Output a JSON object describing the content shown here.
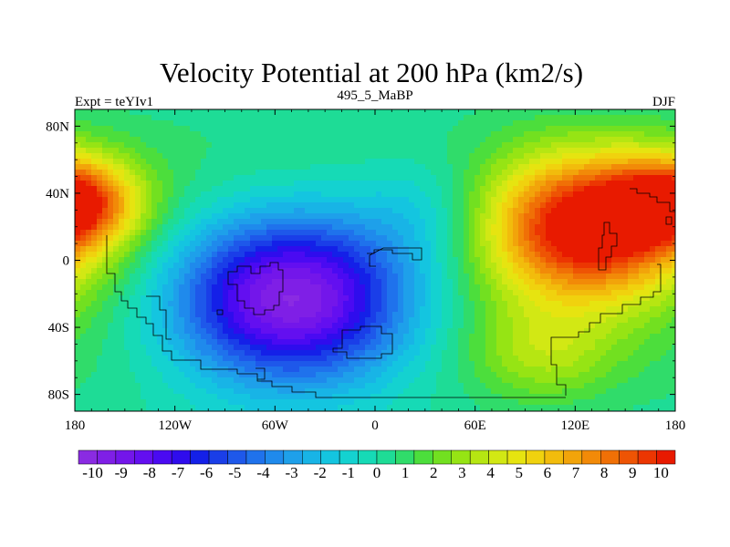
{
  "chart_data": {
    "type": "heatmap",
    "title": "Velocity Potential at 200 hPa (km2/s)",
    "left_label": "Expt = teYIv1",
    "center_label": "495_5_MaBP",
    "right_label": "DJF",
    "x_range": [
      -180,
      180
    ],
    "y_range": [
      -90,
      90
    ],
    "x_ticks": [
      {
        "value": -180,
        "label": "180"
      },
      {
        "value": -120,
        "label": "120W"
      },
      {
        "value": -60,
        "label": "60W"
      },
      {
        "value": 0,
        "label": "0"
      },
      {
        "value": 60,
        "label": "60E"
      },
      {
        "value": 120,
        "label": "120E"
      },
      {
        "value": 180,
        "label": "180"
      }
    ],
    "y_ticks": [
      {
        "value": 80,
        "label": "80N"
      },
      {
        "value": 40,
        "label": "40N"
      },
      {
        "value": 0,
        "label": "0"
      },
      {
        "value": -40,
        "label": "40S"
      },
      {
        "value": -80,
        "label": "80S"
      }
    ],
    "colorbar": {
      "min": -10.5,
      "max": 10.5,
      "step": 0.5,
      "labels": [
        "-10",
        "-9",
        "-8",
        "-7",
        "-6",
        "-5",
        "-4",
        "-3",
        "-2",
        "-1",
        "0",
        "1",
        "2",
        "3",
        "4",
        "5",
        "6",
        "7",
        "8",
        "9",
        "10"
      ],
      "colors": [
        "#8a2be2",
        "#7f1fe6",
        "#7316ea",
        "#630ff0",
        "#4a0af2",
        "#2f0ced",
        "#1420e8",
        "#1a3ee8",
        "#1e58ea",
        "#1f72ec",
        "#1f8aec",
        "#1ea0ea",
        "#18b4e6",
        "#14c5e0",
        "#14d2d0",
        "#16dab6",
        "#1edc96",
        "#30dc6a",
        "#4cde3c",
        "#72e020",
        "#96e414",
        "#b6e612",
        "#d2e814",
        "#e6e410",
        "#f0d20e",
        "#f2bc0c",
        "#f2a40a",
        "#f28a08",
        "#f07006",
        "#ee5404",
        "#ec3602",
        "#e81a00"
      ]
    },
    "field_centers": [
      {
        "lon": -50,
        "lat": -22,
        "amp": -11.5,
        "sx": 52,
        "sy": 36
      },
      {
        "lon": 128,
        "lat": 20,
        "amp": 10.2,
        "sx": 42,
        "sy": 30
      },
      {
        "lon": -180,
        "lat": 35,
        "amp": 7.5,
        "sx": 26,
        "sy": 18
      },
      {
        "lon": 100,
        "lat": -55,
        "amp": 2.5,
        "sx": 30,
        "sy": 20
      },
      {
        "lon": 30,
        "lat": 30,
        "amp": -2.0,
        "sx": 30,
        "sy": 25
      }
    ]
  }
}
